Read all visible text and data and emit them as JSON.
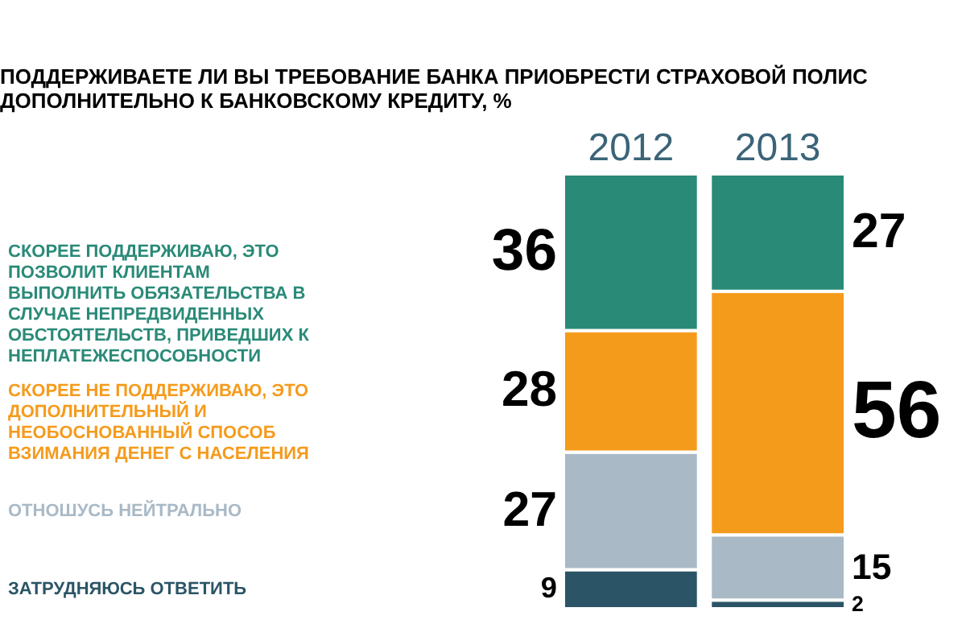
{
  "chart_data": {
    "type": "bar",
    "stacked": true,
    "title": "ПОДДЕРЖИВАЕТЕ ЛИ ВЫ ТРЕБОВАНИЕ БАНКА ПРИОБРЕСТИ СТРАХОВОЙ ПОЛИС ДОПОЛНИТЕЛЬНО К БАНКОВСКОМУ КРЕДИТУ, %",
    "categories": [
      "2012",
      "2013"
    ],
    "series": [
      {
        "name": "ЗАТРУДНЯЮСЬ ОТВЕТИТЬ",
        "color": "#2b5566",
        "values": [
          9,
          2
        ]
      },
      {
        "name": "ОТНОШУСЬ НЕЙТРАЛЬНО",
        "color": "#a9b9c6",
        "values": [
          27,
          15
        ]
      },
      {
        "name": "СКОРЕЕ НЕ ПОДДЕРЖИВАЮ, ЭТО ДОПОЛНИТЕЛЬНЫЙ И НЕОБОСНОВАННЫЙ СПОСОБ ВЗИМАНИЯ ДЕНЕГ С НАСЕЛЕНИЯ",
        "color": "#f59b1c",
        "values": [
          28,
          56
        ]
      },
      {
        "name": "СКОРЕЕ ПОДДЕРЖИВАЮ, ЭТО ПОЗВОЛИТ КЛИЕНТАМ ВЫПОЛНИТЬ ОБЯЗАТЕЛЬСТВА В СЛУЧАЕ НЕПРЕДВИДЕННЫХ ОБСТОЯТЕЛЬСТВ, ПРИВЕДШИХ К НЕПЛАТЕЖЕСПОСОБНОСТИ",
        "color": "#2a8a78",
        "values": [
          36,
          27
        ]
      }
    ],
    "data_labels": true,
    "legend": "left"
  }
}
